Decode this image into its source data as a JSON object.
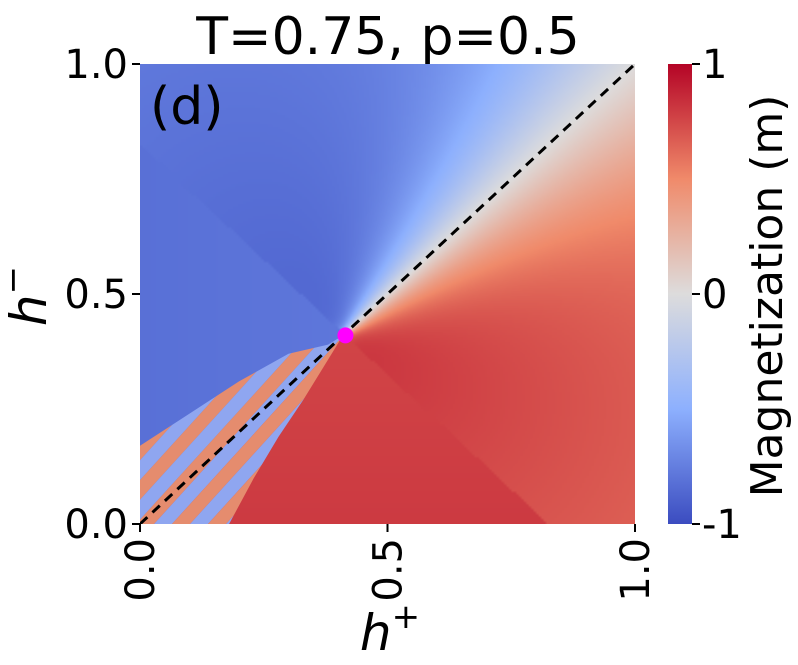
{
  "chart_data": {
    "type": "heatmap",
    "title": "T=0.75, p=0.5",
    "panel_label": "(d)",
    "xlabel": "h",
    "xlabel_sup": "+",
    "ylabel": "h",
    "ylabel_sup": "−",
    "xlim": [
      0.0,
      1.0
    ],
    "ylim": [
      0.0,
      1.0
    ],
    "x_ticks": [
      0.0,
      0.5,
      1.0
    ],
    "x_tick_labels": [
      "0.0",
      "0.5",
      "1.0"
    ],
    "y_ticks": [
      0.0,
      0.5,
      1.0
    ],
    "y_tick_labels": [
      "0.0",
      "0.5",
      "1.0"
    ],
    "colormap": "coolwarm",
    "colorbar": {
      "label": "Magnetization (m)",
      "vmin": -1,
      "vmax": 1,
      "ticks": [
        1,
        0,
        -1
      ],
      "tick_labels": [
        "1",
        "0",
        "-1"
      ]
    },
    "regions": [
      {
        "name": "m ≈ -1 (upper-left, h⁻ > h⁺)",
        "value": -0.85
      },
      {
        "name": "m ≈ +1 (lower-right, h⁺ > h⁻)",
        "value": 0.8
      },
      {
        "name": "m ≈ 0 along diagonal above critical point",
        "value": 0.0
      },
      {
        "name": "coexistence (striped) region",
        "polygon": [
          [
            0.0,
            0.0
          ],
          [
            0.0,
            0.17
          ],
          [
            0.1,
            0.24
          ],
          [
            0.2,
            0.31
          ],
          [
            0.3,
            0.37
          ],
          [
            0.38,
            0.39
          ],
          [
            0.41,
            0.41
          ],
          [
            0.37,
            0.34
          ],
          [
            0.33,
            0.27
          ],
          [
            0.28,
            0.19
          ],
          [
            0.23,
            0.1
          ],
          [
            0.18,
            0.0
          ]
        ]
      }
    ],
    "diagonal_line": {
      "from": [
        0.0,
        0.0
      ],
      "to": [
        1.0,
        1.0
      ],
      "style": "dashed",
      "color": "#000000"
    },
    "critical_point": {
      "x": 0.415,
      "y": 0.41,
      "color": "#ff00ff"
    },
    "colors": {
      "blue_end": "#3b4cc0",
      "white_mid": "#dddddd",
      "red_end": "#b40426",
      "stripe_blue": "#8fa6f0",
      "stripe_red": "#e58c6e",
      "marker": "#ff00ff"
    }
  }
}
